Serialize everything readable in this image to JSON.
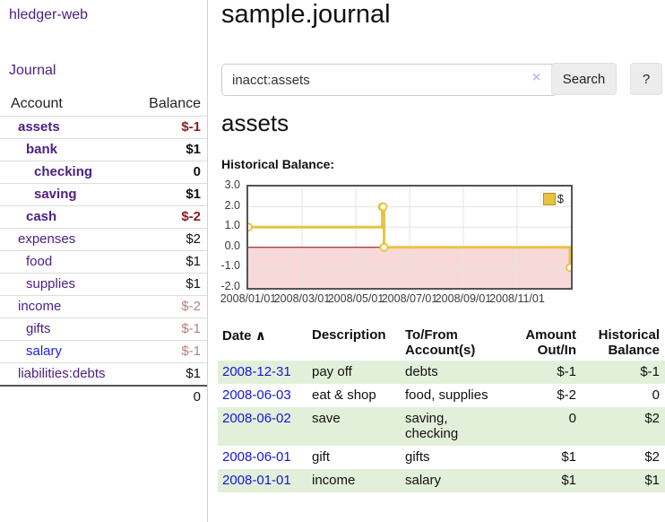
{
  "app": {
    "title": "hledger-web"
  },
  "sidebar": {
    "journal_link": "Journal",
    "header": {
      "account": "Account",
      "balance": "Balance"
    },
    "accounts": [
      {
        "name": "assets",
        "depth": 1,
        "balance": "$-1",
        "bold": true,
        "neg": "strong"
      },
      {
        "name": "bank",
        "depth": 2,
        "balance": "$1",
        "bold": true
      },
      {
        "name": "checking",
        "depth": 3,
        "balance": "0",
        "bold": true
      },
      {
        "name": "saving",
        "depth": 3,
        "balance": "$1",
        "bold": true
      },
      {
        "name": "cash",
        "depth": 2,
        "balance": "$-2",
        "bold": true,
        "neg": "strong"
      },
      {
        "name": "expenses",
        "depth": 1,
        "balance": "$2"
      },
      {
        "name": "food",
        "depth": 2,
        "balance": "$1"
      },
      {
        "name": "supplies",
        "depth": 2,
        "balance": "$1"
      },
      {
        "name": "income",
        "depth": 1,
        "balance": "$-2",
        "neg": "soft"
      },
      {
        "name": "gifts",
        "depth": 2,
        "balance": "$-1",
        "neg": "soft"
      },
      {
        "name": "salary",
        "depth": 2,
        "balance": "$-1",
        "neg": "soft",
        "link_style": "blue"
      },
      {
        "name": "liabilities:debts",
        "depth": 1,
        "balance": "$1"
      }
    ],
    "total": "0"
  },
  "main": {
    "title": "sample.journal",
    "search": {
      "value": "inacct:assets",
      "clear_icon": "×",
      "button_label": "Search",
      "help_label": "?"
    },
    "account_heading": "assets",
    "chart_label": "Historical Balance:"
  },
  "chart_data": {
    "type": "line",
    "step": true,
    "title": "Historical Balance",
    "series": [
      {
        "name": "$",
        "color": "#e9c340",
        "points": [
          [
            "2008-01-01",
            1
          ],
          [
            "2008-06-01",
            2
          ],
          [
            "2008-06-02",
            2
          ],
          [
            "2008-06-03",
            0
          ],
          [
            "2008-12-31",
            -1
          ]
        ]
      }
    ],
    "ylim": [
      -2,
      3
    ],
    "y_ticks": [
      "3.0",
      "2.0",
      "1.0",
      "0.0",
      "-1.0",
      "-2.0"
    ],
    "x_ticks": [
      "2008/01/01",
      "2008/03/01",
      "2008/05/01",
      "2008/07/01",
      "2008/09/01",
      "2008/11/01"
    ],
    "x_start": "2008-01-01",
    "x_days": 366,
    "grid": true,
    "negative_fill": "#f8d9d9",
    "zero_line_color": "#8b0000",
    "legend": {
      "label": "$",
      "position": "top-right"
    }
  },
  "register": {
    "headers": [
      {
        "label": "Date",
        "sort": "∧",
        "align": "left"
      },
      {
        "label": "Description",
        "align": "left"
      },
      {
        "label": "To/From Account(s)",
        "align": "left"
      },
      {
        "label": "Amount Out/In",
        "align": "right"
      },
      {
        "label": "Historical Balance",
        "align": "right"
      }
    ],
    "rows": [
      {
        "date": "2008-12-31",
        "description": "pay off",
        "to_from": "debts",
        "amount": "$-1",
        "balance": "$-1"
      },
      {
        "date": "2008-06-03",
        "description": "eat & shop",
        "to_from": "food, supplies",
        "amount": "$-2",
        "balance": "0"
      },
      {
        "date": "2008-06-02",
        "description": "save",
        "to_from": "saving,\nchecking",
        "amount": "0",
        "balance": "$2"
      },
      {
        "date": "2008-06-01",
        "description": "gift",
        "to_from": "gifts",
        "amount": "$1",
        "balance": "$2"
      },
      {
        "date": "2008-01-01",
        "description": "income",
        "to_from": "salary",
        "amount": "$1",
        "balance": "$1"
      }
    ]
  }
}
